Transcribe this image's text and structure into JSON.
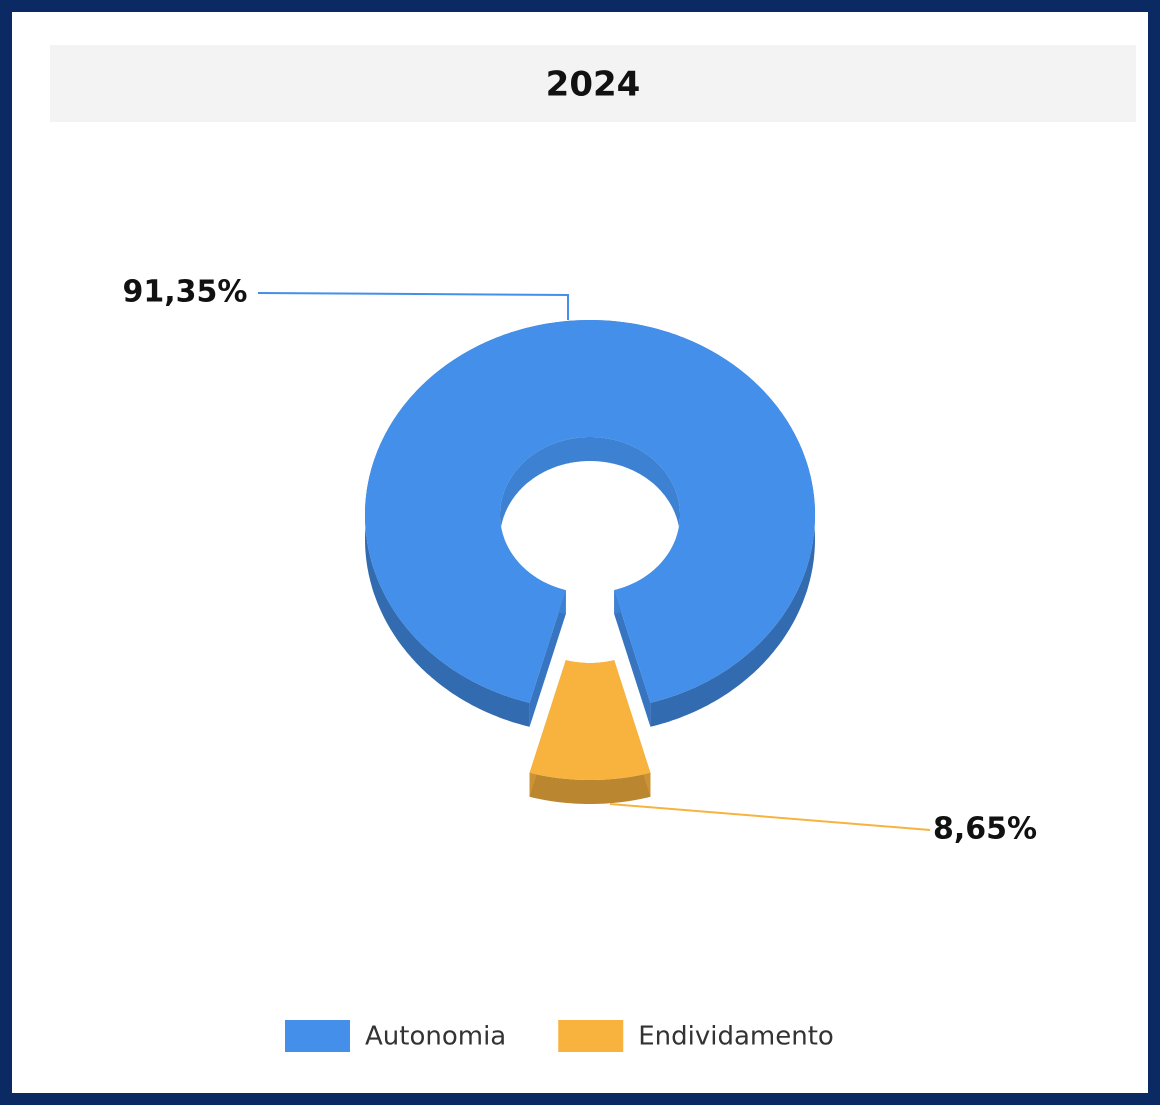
{
  "chart_data": {
    "type": "donut",
    "title": "2024",
    "categories": [
      "Autonomia",
      "Endividamento"
    ],
    "values": [
      91.35,
      8.65
    ],
    "value_labels": [
      "91,35%",
      "8,65%"
    ],
    "colors": [
      "#448fea",
      "#f8b33e"
    ],
    "legend": "bottom"
  }
}
